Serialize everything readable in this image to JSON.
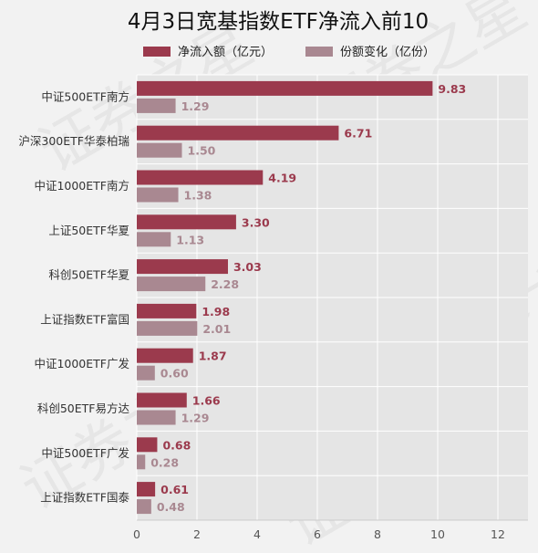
{
  "chart_data": {
    "type": "bar",
    "orientation": "horizontal",
    "title": "4月3日宽基指数ETF净流入前10",
    "categories": [
      "中证500ETF南方",
      "沪深300ETF华泰柏瑞",
      "中证1000ETF南方",
      "上证50ETF华夏",
      "科创50ETF华夏",
      "上证指数ETF富国",
      "中证1000ETF广发",
      "科创50ETF易方达",
      "中证500ETF广发",
      "上证指数ETF国泰"
    ],
    "series": [
      {
        "name": "净流入额（亿元）",
        "color": "#9b3a4d",
        "values": [
          9.83,
          6.71,
          4.19,
          3.3,
          3.03,
          1.98,
          1.87,
          1.66,
          0.68,
          0.61
        ],
        "labels": [
          "9.83",
          "6.71",
          "4.19",
          "3.30",
          "3.03",
          "1.98",
          "1.87",
          "1.66",
          "0.68",
          "0.61"
        ]
      },
      {
        "name": "份额变化（亿份）",
        "color": "#a98891",
        "values": [
          1.29,
          1.5,
          1.38,
          1.13,
          2.28,
          2.01,
          0.6,
          1.29,
          0.28,
          0.48
        ],
        "labels": [
          "1.29",
          "1.50",
          "1.38",
          "1.13",
          "2.28",
          "2.01",
          "0.60",
          "1.29",
          "0.28",
          "0.48"
        ]
      }
    ],
    "xlim": [
      0,
      13
    ],
    "xticks": [
      0,
      2,
      4,
      6,
      8,
      10,
      12
    ],
    "xtick_labels": [
      "0",
      "2",
      "4",
      "6",
      "8",
      "10",
      "12"
    ],
    "grid": true,
    "legend_position": "top-center",
    "watermark": "证券之星"
  }
}
